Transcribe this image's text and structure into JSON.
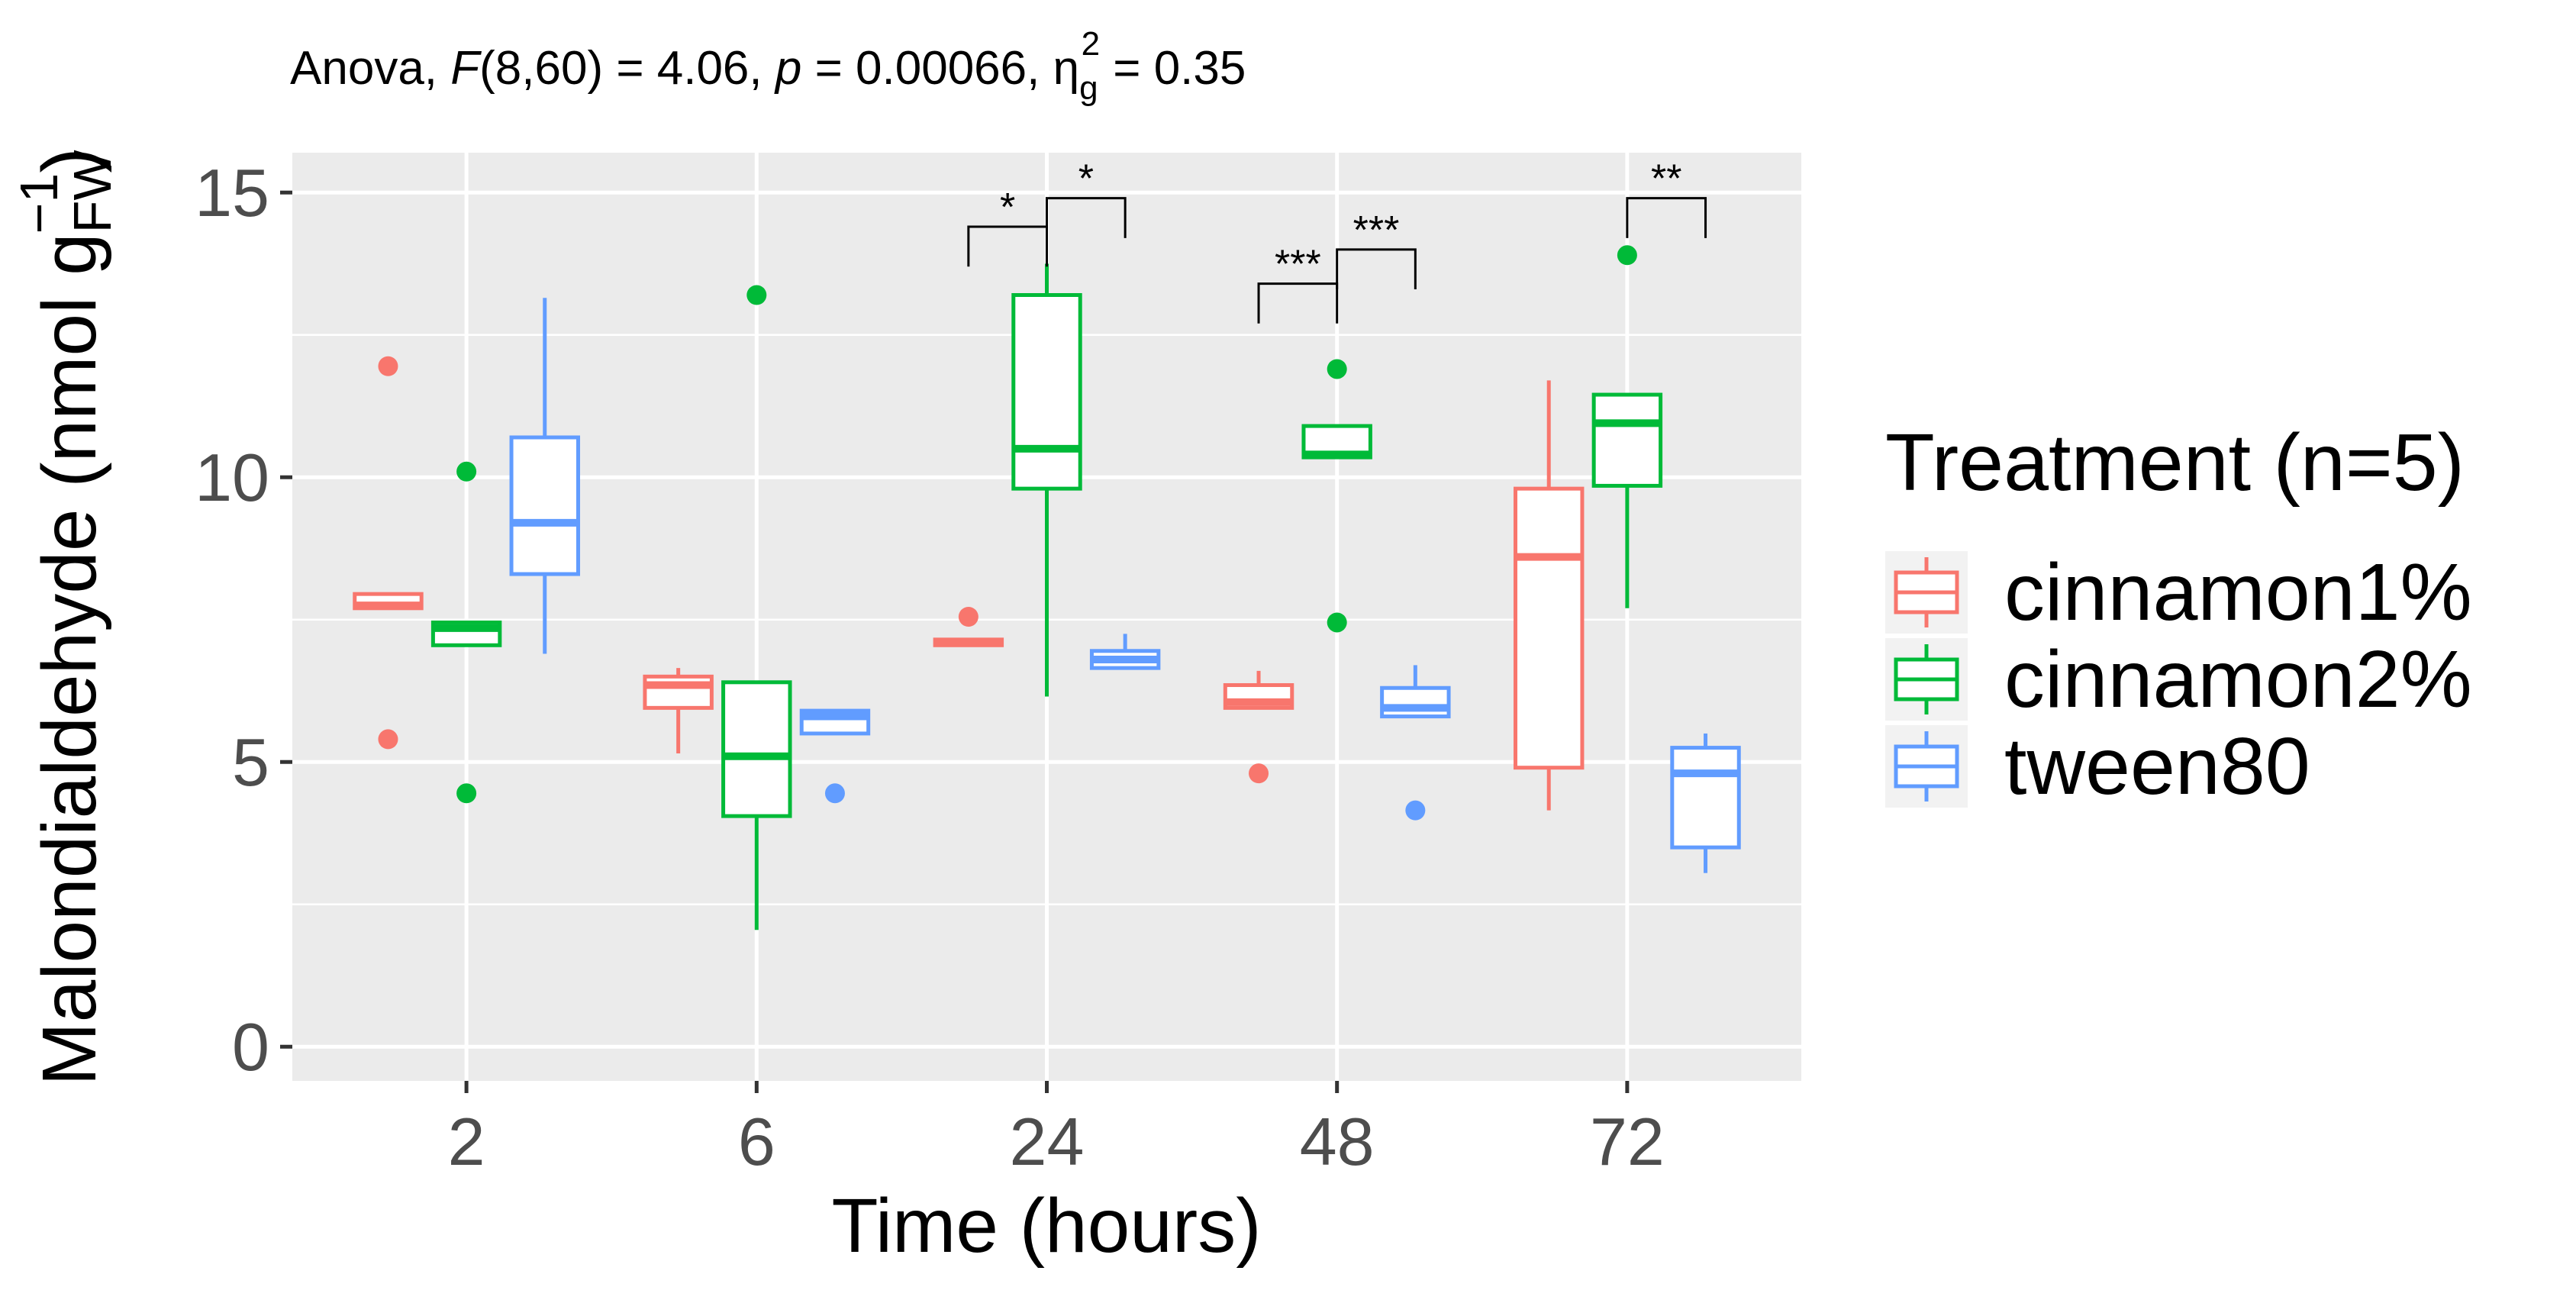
{
  "chart_data": {
    "type": "boxplot",
    "title": {
      "prefix": "Anova, ",
      "F_symbol": "F",
      "F_args": "(8,60) = 4.06, ",
      "p_symbol": "p",
      "p_value": " = 0.00066, ",
      "eta_symbol": "η",
      "eta_sub": "g",
      "eta_sup": "2",
      "eta_value": " = 0.35"
    },
    "xlabel": "Time (hours)",
    "ylabel": {
      "main": "Malondialdehyde (nmol g",
      "sub": "FW",
      "sup": "−1",
      "close": ")"
    },
    "categories": [
      "2",
      "6",
      "24",
      "48",
      "72"
    ],
    "ylim": [
      -0.6,
      15.7
    ],
    "yticks": [
      0,
      5,
      10,
      15
    ],
    "yticklabels": [
      "0",
      "5",
      "10",
      "15"
    ],
    "grid": true,
    "legend": {
      "title": "Treatment (n=5)",
      "position": "right",
      "entries": [
        "cinnamon1%",
        "cinnamon2%",
        "tween80"
      ]
    },
    "series": [
      {
        "name": "cinnamon1%",
        "color": "#F8766D",
        "boxes": [
          {
            "q1": 7.7,
            "median": 7.75,
            "q3": 7.95,
            "wlo": 7.7,
            "whi": 7.95,
            "outliers": [
              11.95,
              5.4
            ]
          },
          {
            "q1": 5.95,
            "median": 6.35,
            "q3": 6.5,
            "wlo": 5.15,
            "whi": 6.65,
            "outliers": []
          },
          {
            "q1": 7.05,
            "median": 7.1,
            "q3": 7.15,
            "wlo": 7.05,
            "whi": 7.15,
            "outliers": [
              7.55
            ]
          },
          {
            "q1": 5.95,
            "median": 6.05,
            "q3": 6.35,
            "wlo": 5.95,
            "whi": 6.6,
            "outliers": [
              4.8
            ]
          },
          {
            "q1": 4.9,
            "median": 8.6,
            "q3": 9.8,
            "wlo": 4.15,
            "whi": 11.7,
            "outliers": []
          }
        ]
      },
      {
        "name": "cinnamon2%",
        "color": "#00BA38",
        "boxes": [
          {
            "q1": 7.05,
            "median": 7.35,
            "q3": 7.45,
            "wlo": 7.05,
            "whi": 7.45,
            "outliers": [
              10.1,
              4.45
            ]
          },
          {
            "q1": 4.05,
            "median": 5.1,
            "q3": 6.4,
            "wlo": 2.05,
            "whi": 6.4,
            "outliers": [
              13.2
            ]
          },
          {
            "q1": 9.8,
            "median": 10.5,
            "q3": 13.2,
            "wlo": 6.15,
            "whi": 13.75,
            "outliers": []
          },
          {
            "q1": 10.35,
            "median": 10.4,
            "q3": 10.9,
            "wlo": 10.35,
            "whi": 10.9,
            "outliers": [
              11.9,
              7.45
            ]
          },
          {
            "q1": 9.85,
            "median": 10.95,
            "q3": 11.45,
            "wlo": 7.7,
            "whi": 11.45,
            "outliers": [
              13.9
            ]
          }
        ]
      },
      {
        "name": "tween80",
        "color": "#619CFF",
        "boxes": [
          {
            "q1": 8.3,
            "median": 9.2,
            "q3": 10.7,
            "wlo": 6.9,
            "whi": 13.15,
            "outliers": []
          },
          {
            "q1": 5.5,
            "median": 5.8,
            "q3": 5.9,
            "wlo": 5.5,
            "whi": 5.9,
            "outliers": [
              4.45
            ]
          },
          {
            "q1": 6.65,
            "median": 6.8,
            "q3": 6.95,
            "wlo": 6.65,
            "whi": 7.25,
            "outliers": []
          },
          {
            "q1": 5.8,
            "median": 5.95,
            "q3": 6.3,
            "wlo": 5.8,
            "whi": 6.7,
            "outliers": [
              4.15
            ]
          },
          {
            "q1": 3.5,
            "median": 4.8,
            "q3": 5.25,
            "wlo": 3.05,
            "whi": 5.5,
            "outliers": []
          }
        ]
      }
    ],
    "significance": [
      {
        "category": "24",
        "from": "cinnamon1%",
        "to": "cinnamon2%",
        "label": "*",
        "y": 14.4,
        "drop": 0.7
      },
      {
        "category": "24",
        "from": "cinnamon2%",
        "to": "tween80",
        "label": "*",
        "y": 14.9,
        "drop": 0.7
      },
      {
        "category": "48",
        "from": "cinnamon1%",
        "to": "cinnamon2%",
        "label": "***",
        "y": 13.4,
        "drop": 0.7
      },
      {
        "category": "48",
        "from": "cinnamon2%",
        "to": "tween80",
        "label": "***",
        "y": 14.0,
        "drop": 0.7
      },
      {
        "category": "72",
        "from": "cinnamon2%",
        "to": "tween80",
        "label": "**",
        "y": 14.9,
        "drop": 0.7
      }
    ]
  }
}
